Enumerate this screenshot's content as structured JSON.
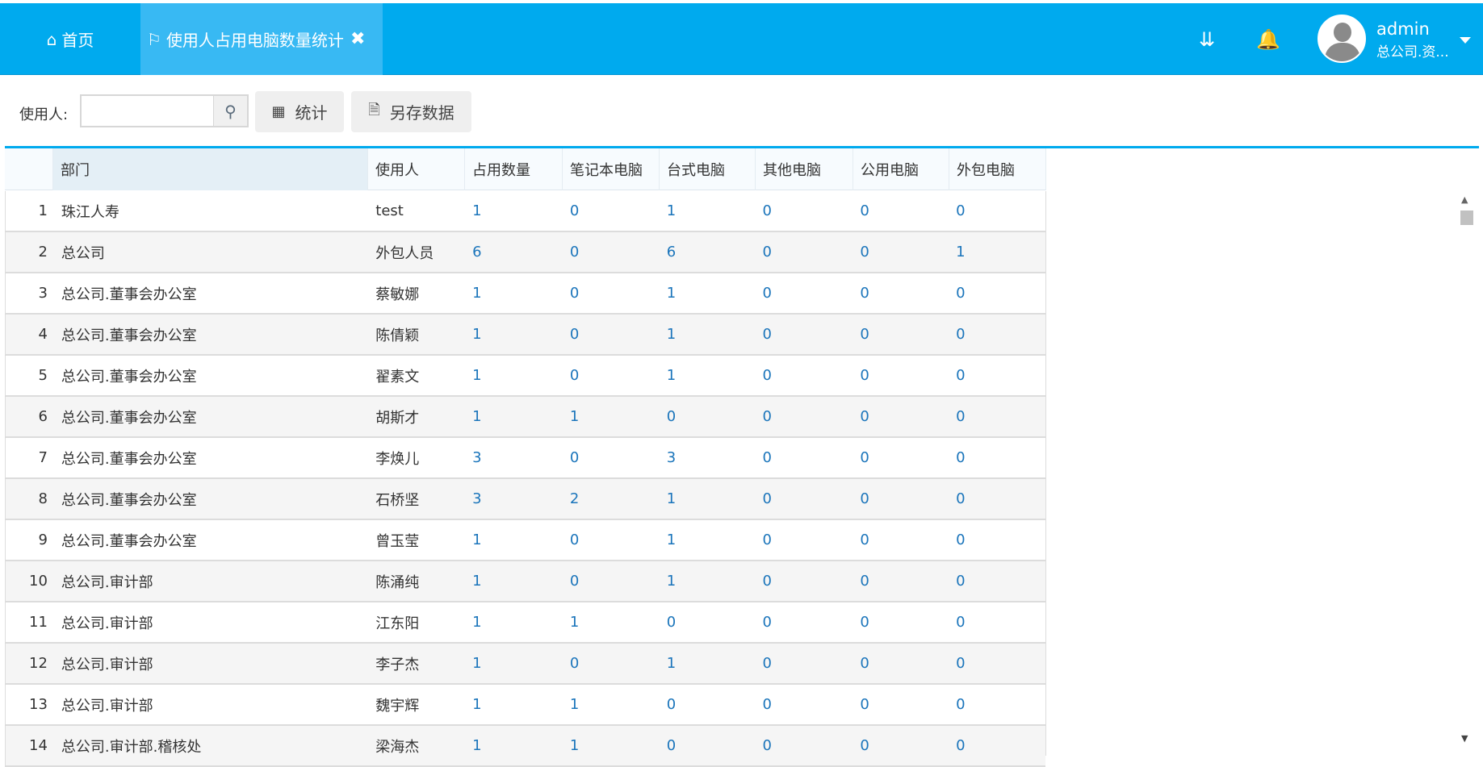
{
  "tabs": {
    "home": "首页",
    "active": "使用人占用电脑数量统计"
  },
  "user": {
    "name": "admin",
    "org": "总公司.资..."
  },
  "toolbar": {
    "label": "使用人:",
    "search_value": "",
    "stat": "统计",
    "export": "另存数据"
  },
  "columns": [
    "部门",
    "使用人",
    "占用数量",
    "笔记本电脑",
    "台式电脑",
    "其他电脑",
    "公用电脑",
    "外包电脑"
  ],
  "rows": [
    [
      "1",
      "珠江人寿",
      "test",
      "1",
      "0",
      "1",
      "0",
      "0",
      "0"
    ],
    [
      "2",
      "总公司",
      "外包人员",
      "6",
      "0",
      "6",
      "0",
      "0",
      "1"
    ],
    [
      "3",
      "总公司.董事会办公室",
      "蔡敏娜",
      "1",
      "0",
      "1",
      "0",
      "0",
      "0"
    ],
    [
      "4",
      "总公司.董事会办公室",
      "陈倩颖",
      "1",
      "0",
      "1",
      "0",
      "0",
      "0"
    ],
    [
      "5",
      "总公司.董事会办公室",
      "翟素文",
      "1",
      "0",
      "1",
      "0",
      "0",
      "0"
    ],
    [
      "6",
      "总公司.董事会办公室",
      "胡斯才",
      "1",
      "1",
      "0",
      "0",
      "0",
      "0"
    ],
    [
      "7",
      "总公司.董事会办公室",
      "李焕儿",
      "3",
      "0",
      "3",
      "0",
      "0",
      "0"
    ],
    [
      "8",
      "总公司.董事会办公室",
      "石桥坚",
      "3",
      "2",
      "1",
      "0",
      "0",
      "0"
    ],
    [
      "9",
      "总公司.董事会办公室",
      "曾玉莹",
      "1",
      "0",
      "1",
      "0",
      "0",
      "0"
    ],
    [
      "10",
      "总公司.审计部",
      "陈涌纯",
      "1",
      "0",
      "1",
      "0",
      "0",
      "0"
    ],
    [
      "11",
      "总公司.审计部",
      "江东阳",
      "1",
      "1",
      "0",
      "0",
      "0",
      "0"
    ],
    [
      "12",
      "总公司.审计部",
      "李子杰",
      "1",
      "0",
      "1",
      "0",
      "0",
      "0"
    ],
    [
      "13",
      "总公司.审计部",
      "魏宇辉",
      "1",
      "1",
      "0",
      "0",
      "0",
      "0"
    ],
    [
      "14",
      "总公司.审计部.稽核处",
      "梁海杰",
      "1",
      "1",
      "0",
      "0",
      "0",
      "0"
    ]
  ],
  "colors": {
    "brand": "#00aaee",
    "active_tab": "#38b9f3",
    "link": "#1b75bb"
  }
}
